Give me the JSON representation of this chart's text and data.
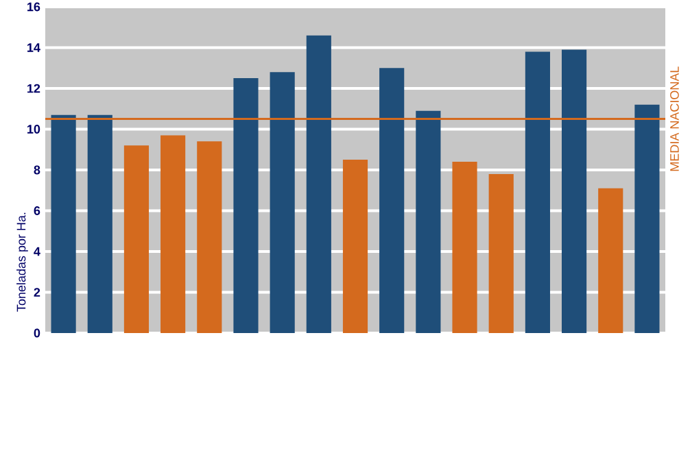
{
  "chart_data": {
    "type": "bar",
    "ylabel": "Toneladas por Ha.",
    "categories": [
      null,
      null,
      null,
      null,
      null,
      null,
      null,
      null,
      null,
      null,
      null,
      null,
      null,
      null,
      null,
      null,
      null
    ],
    "values": [
      10.7,
      10.7,
      9.2,
      9.7,
      9.4,
      12.5,
      12.8,
      14.6,
      8.5,
      13.0,
      10.9,
      8.4,
      7.8,
      13.8,
      13.9,
      7.1,
      11.2
    ],
    "colors": [
      "#1f4e79",
      "#1f4e79",
      "#d46a1e",
      "#d46a1e",
      "#d46a1e",
      "#1f4e79",
      "#1f4e79",
      "#1f4e79",
      "#d46a1e",
      "#1f4e79",
      "#1f4e79",
      "#d46a1e",
      "#d46a1e",
      "#1f4e79",
      "#1f4e79",
      "#d46a1e",
      "#1f4e79"
    ],
    "ylim": [
      0,
      16
    ],
    "yticks": [
      0,
      2,
      4,
      6,
      8,
      10,
      12,
      14,
      16
    ],
    "grid": "y",
    "ref_lines": [
      {
        "axis": "y",
        "value": 10.5,
        "label": "MEDIA NACIONAL",
        "color": "#d46a1e"
      }
    ]
  }
}
